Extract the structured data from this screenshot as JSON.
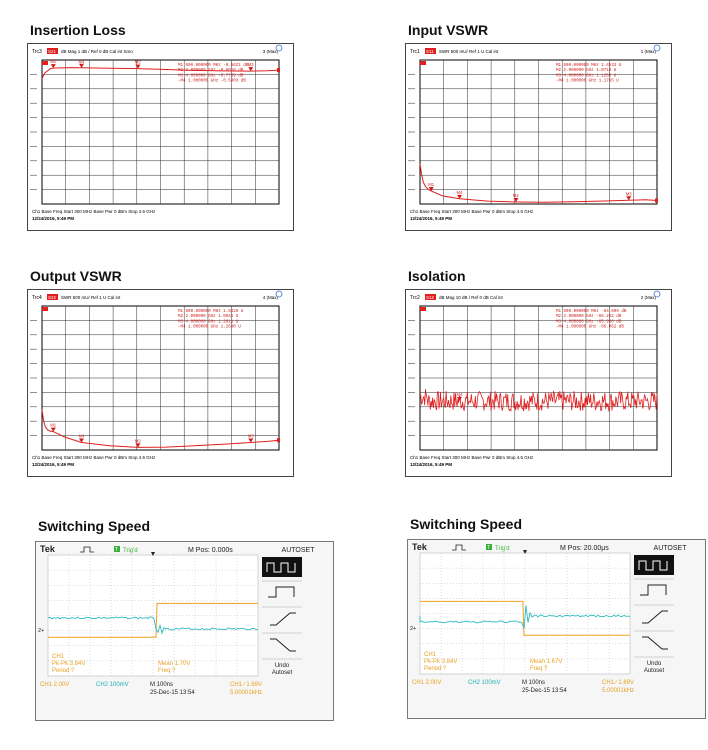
{
  "colors": {
    "trace": "#e21e1e",
    "grid": "#2a2a2a",
    "marker": "#d01818",
    "ch1": "#f0a020",
    "ch2": "#2cbcc0",
    "scope_text_ch1": "#e8a020",
    "scope_text_ch2": "#1fb0b5"
  },
  "vna_panels": [
    {
      "title": "Insertion Loss",
      "header": {
        "trc": "Trc3",
        "param": "S21",
        "mode": "dB Mag  1 dB / Ref 0 dB   Cal int Smo",
        "count": "3 (Max)"
      },
      "marker_rows": [
        "M1  500.000000 MHz  -0.5621 dB",
        "M2    2.000000 GHz  -0.6018 dB",
        "M3    4.000000 GHz  -0.7739 dB",
        "-M4    1.000000 GHz  -0.5403 dB"
      ],
      "footer1": "Ch1  Base Freq  Start  300 MHz        Base Pwr  0 dBm                    Stop  4.5 GHz",
      "footer2": "12/24/2016, 5:49 PM",
      "markers": [
        {
          "label": "M1",
          "x": 0.5
        },
        {
          "label": "M4",
          "x": 1.0
        },
        {
          "label": "M2",
          "x": 2.0
        },
        {
          "label": "M3",
          "x": 4.0
        }
      ],
      "chart_data": {
        "type": "line",
        "xlabel": "",
        "ylabel": "",
        "xlim": [
          0.3,
          4.5
        ],
        "ylim": [
          -10,
          0
        ],
        "x_unit": "GHz",
        "y_unit": "dB",
        "series": [
          {
            "x": [
              0.3,
              0.35,
              0.45,
              0.5,
              0.8,
              1.0,
              1.5,
              2.0,
              2.5,
              3.0,
              3.5,
              4.0,
              4.3,
              4.5
            ],
            "y": [
              -1.3,
              -0.9,
              -0.6,
              -0.56,
              -0.53,
              -0.54,
              -0.57,
              -0.6,
              -0.66,
              -0.72,
              -0.76,
              -0.77,
              -0.75,
              -0.7
            ]
          }
        ]
      }
    },
    {
      "title": "Input VSWR",
      "header": {
        "trc": "Trc1",
        "param": "S11",
        "mode": "SWR  500 mU/ Ref 1 U      Cal int",
        "count": "1 (Max)"
      },
      "marker_rows": [
        "M1  500.000000 MHz  1.4533 U",
        "M2    2.000000 GHz  1.0718 U",
        "M3    4.000000 GHz  1.1285 U",
        "-M4    1.000000 GHz  1.1765 U"
      ],
      "footer1": "Ch1  Base Freq  Start  300 MHz        Base Pwr  0 dBm                    Stop  4.5 GHz",
      "footer2": "12/24/2016, 5:49 PM",
      "markers": [
        {
          "label": "M1",
          "x": 0.5
        },
        {
          "label": "M4",
          "x": 1.0
        },
        {
          "label": "M2",
          "x": 2.0
        },
        {
          "label": "M3",
          "x": 4.0
        }
      ],
      "chart_data": {
        "type": "line",
        "xlabel": "",
        "ylabel": "",
        "xlim": [
          0.3,
          4.5
        ],
        "ylim": [
          1,
          6
        ],
        "x_unit": "GHz",
        "y_unit": "U",
        "series": [
          {
            "x": [
              0.3,
              0.33,
              0.36,
              0.4,
              0.45,
              0.5,
              0.7,
              1.0,
              1.5,
              2.0,
              2.5,
              3.0,
              3.5,
              4.0,
              4.3,
              4.5
            ],
            "y": [
              2.4,
              2.0,
              1.75,
              1.6,
              1.5,
              1.45,
              1.28,
              1.18,
              1.1,
              1.07,
              1.06,
              1.08,
              1.1,
              1.13,
              1.15,
              1.12
            ]
          }
        ]
      }
    },
    {
      "title": "Output VSWR",
      "header": {
        "trc": "Trc4",
        "param": "S22",
        "mode": "SWR  500 mU/ Ref 1 U      Cal int",
        "count": "4 (Max)"
      },
      "marker_rows": [
        "M1  500.000000 MHz  1.6426 U",
        "M2    2.000000 GHz  1.0941 U",
        "M3    4.000000 GHz  1.2611 U",
        "-M4    1.000000 GHz  1.2640 U"
      ],
      "footer1": "Ch1  Base Freq  Start  300 MHz        Base Pwr  0 dBm                    Stop  4.5 GHz",
      "footer2": "12/24/2016, 5:49 PM",
      "markers": [
        {
          "label": "M1",
          "x": 0.5
        },
        {
          "label": "M4",
          "x": 1.0
        },
        {
          "label": "M2",
          "x": 2.0
        },
        {
          "label": "M3",
          "x": 4.0
        }
      ],
      "chart_data": {
        "type": "line",
        "xlabel": "",
        "ylabel": "",
        "xlim": [
          0.3,
          4.5
        ],
        "ylim": [
          1,
          6
        ],
        "x_unit": "GHz",
        "y_unit": "U",
        "series": [
          {
            "x": [
              0.3,
              0.33,
              0.36,
              0.4,
              0.45,
              0.5,
              0.7,
              1.0,
              1.5,
              2.0,
              2.5,
              3.0,
              3.5,
              4.0,
              4.3,
              4.5
            ],
            "y": [
              2.4,
              2.0,
              1.8,
              1.7,
              1.65,
              1.64,
              1.45,
              1.26,
              1.15,
              1.09,
              1.1,
              1.15,
              1.2,
              1.26,
              1.3,
              1.34
            ]
          }
        ]
      }
    },
    {
      "title": "Isolation",
      "header": {
        "trc": "Trc2",
        "param": "S12",
        "mode": "dB Mag  10 dB / Ref 0 dB   Cal int",
        "count": "2 (Max)"
      },
      "marker_rows": [
        "M1  500.000000 MHz  -64.609 dB",
        "M2    2.000000 GHz  -66.262 dB",
        "M3    4.000000 GHz  -65.950 dB",
        "-M4    1.000000 GHz  -66.062 dB"
      ],
      "footer1": "Ch1  Base Freq  Start  300 MHz        Base Pwr  0 dBm                    Stop  4.5 GHz",
      "footer2": "12/24/2016, 5:49 PM",
      "markers": [
        {
          "label": "M4",
          "x": 1.0
        }
      ],
      "chart_data": {
        "type": "line",
        "xlabel": "",
        "ylabel": "",
        "xlim": [
          0.3,
          4.5
        ],
        "ylim": [
          -100,
          0
        ],
        "x_unit": "GHz",
        "y_unit": "dB",
        "noise": true,
        "series": [
          {
            "x": [
              0.3,
              1.0,
              2.0,
              3.0,
              4.0,
              4.5
            ],
            "y": [
              -66,
              -66,
              -66,
              -66,
              -66,
              -66
            ]
          }
        ]
      }
    }
  ],
  "scope_panels": [
    {
      "title": "Switching Speed",
      "brand": "Tek",
      "trig_state": "Trig'd",
      "mpos": "M Pos: 0.000s",
      "autoset": "AUTOSET",
      "undo": "Undo",
      "undo2": "Autoset",
      "ch2_marker": "2+",
      "meas": {
        "ch": "CH1",
        "pkpk": "Pk-Pk 3.84V",
        "period": "Period ?",
        "mean": "Mean 1.70V",
        "freq": "Freq ?"
      },
      "bottom": {
        "ch1": "CH1  2.00V",
        "ch2": "CH2  100mV",
        "time": "M 100ns",
        "date": "25-Dec-15 13:54",
        "trig": "CH1  ∕  1.69V",
        "trig_freq": "5.00001kHz"
      },
      "edge": "step"
    },
    {
      "title": "Switching Speed",
      "brand": "Tek",
      "trig_state": "Trig'd",
      "mpos": "M Pos: 20.00μs",
      "autoset": "AUTOSET",
      "undo": "Undo",
      "undo2": "Autoset",
      "ch2_marker": "2+",
      "meas": {
        "ch": "CH1",
        "pkpk": "Pk-Pk 3.84V",
        "period": "Period ?",
        "mean": "Mean 1.67V",
        "freq": "Freq ?"
      },
      "bottom": {
        "ch1": "CH1  2.00V",
        "ch2": "CH2  100mV",
        "time": "M 100ns",
        "date": "25-Dec-15 13:54",
        "trig": "CH1  ∕  1.69V",
        "trig_freq": "5.00001kHz"
      },
      "edge": "fall"
    }
  ]
}
